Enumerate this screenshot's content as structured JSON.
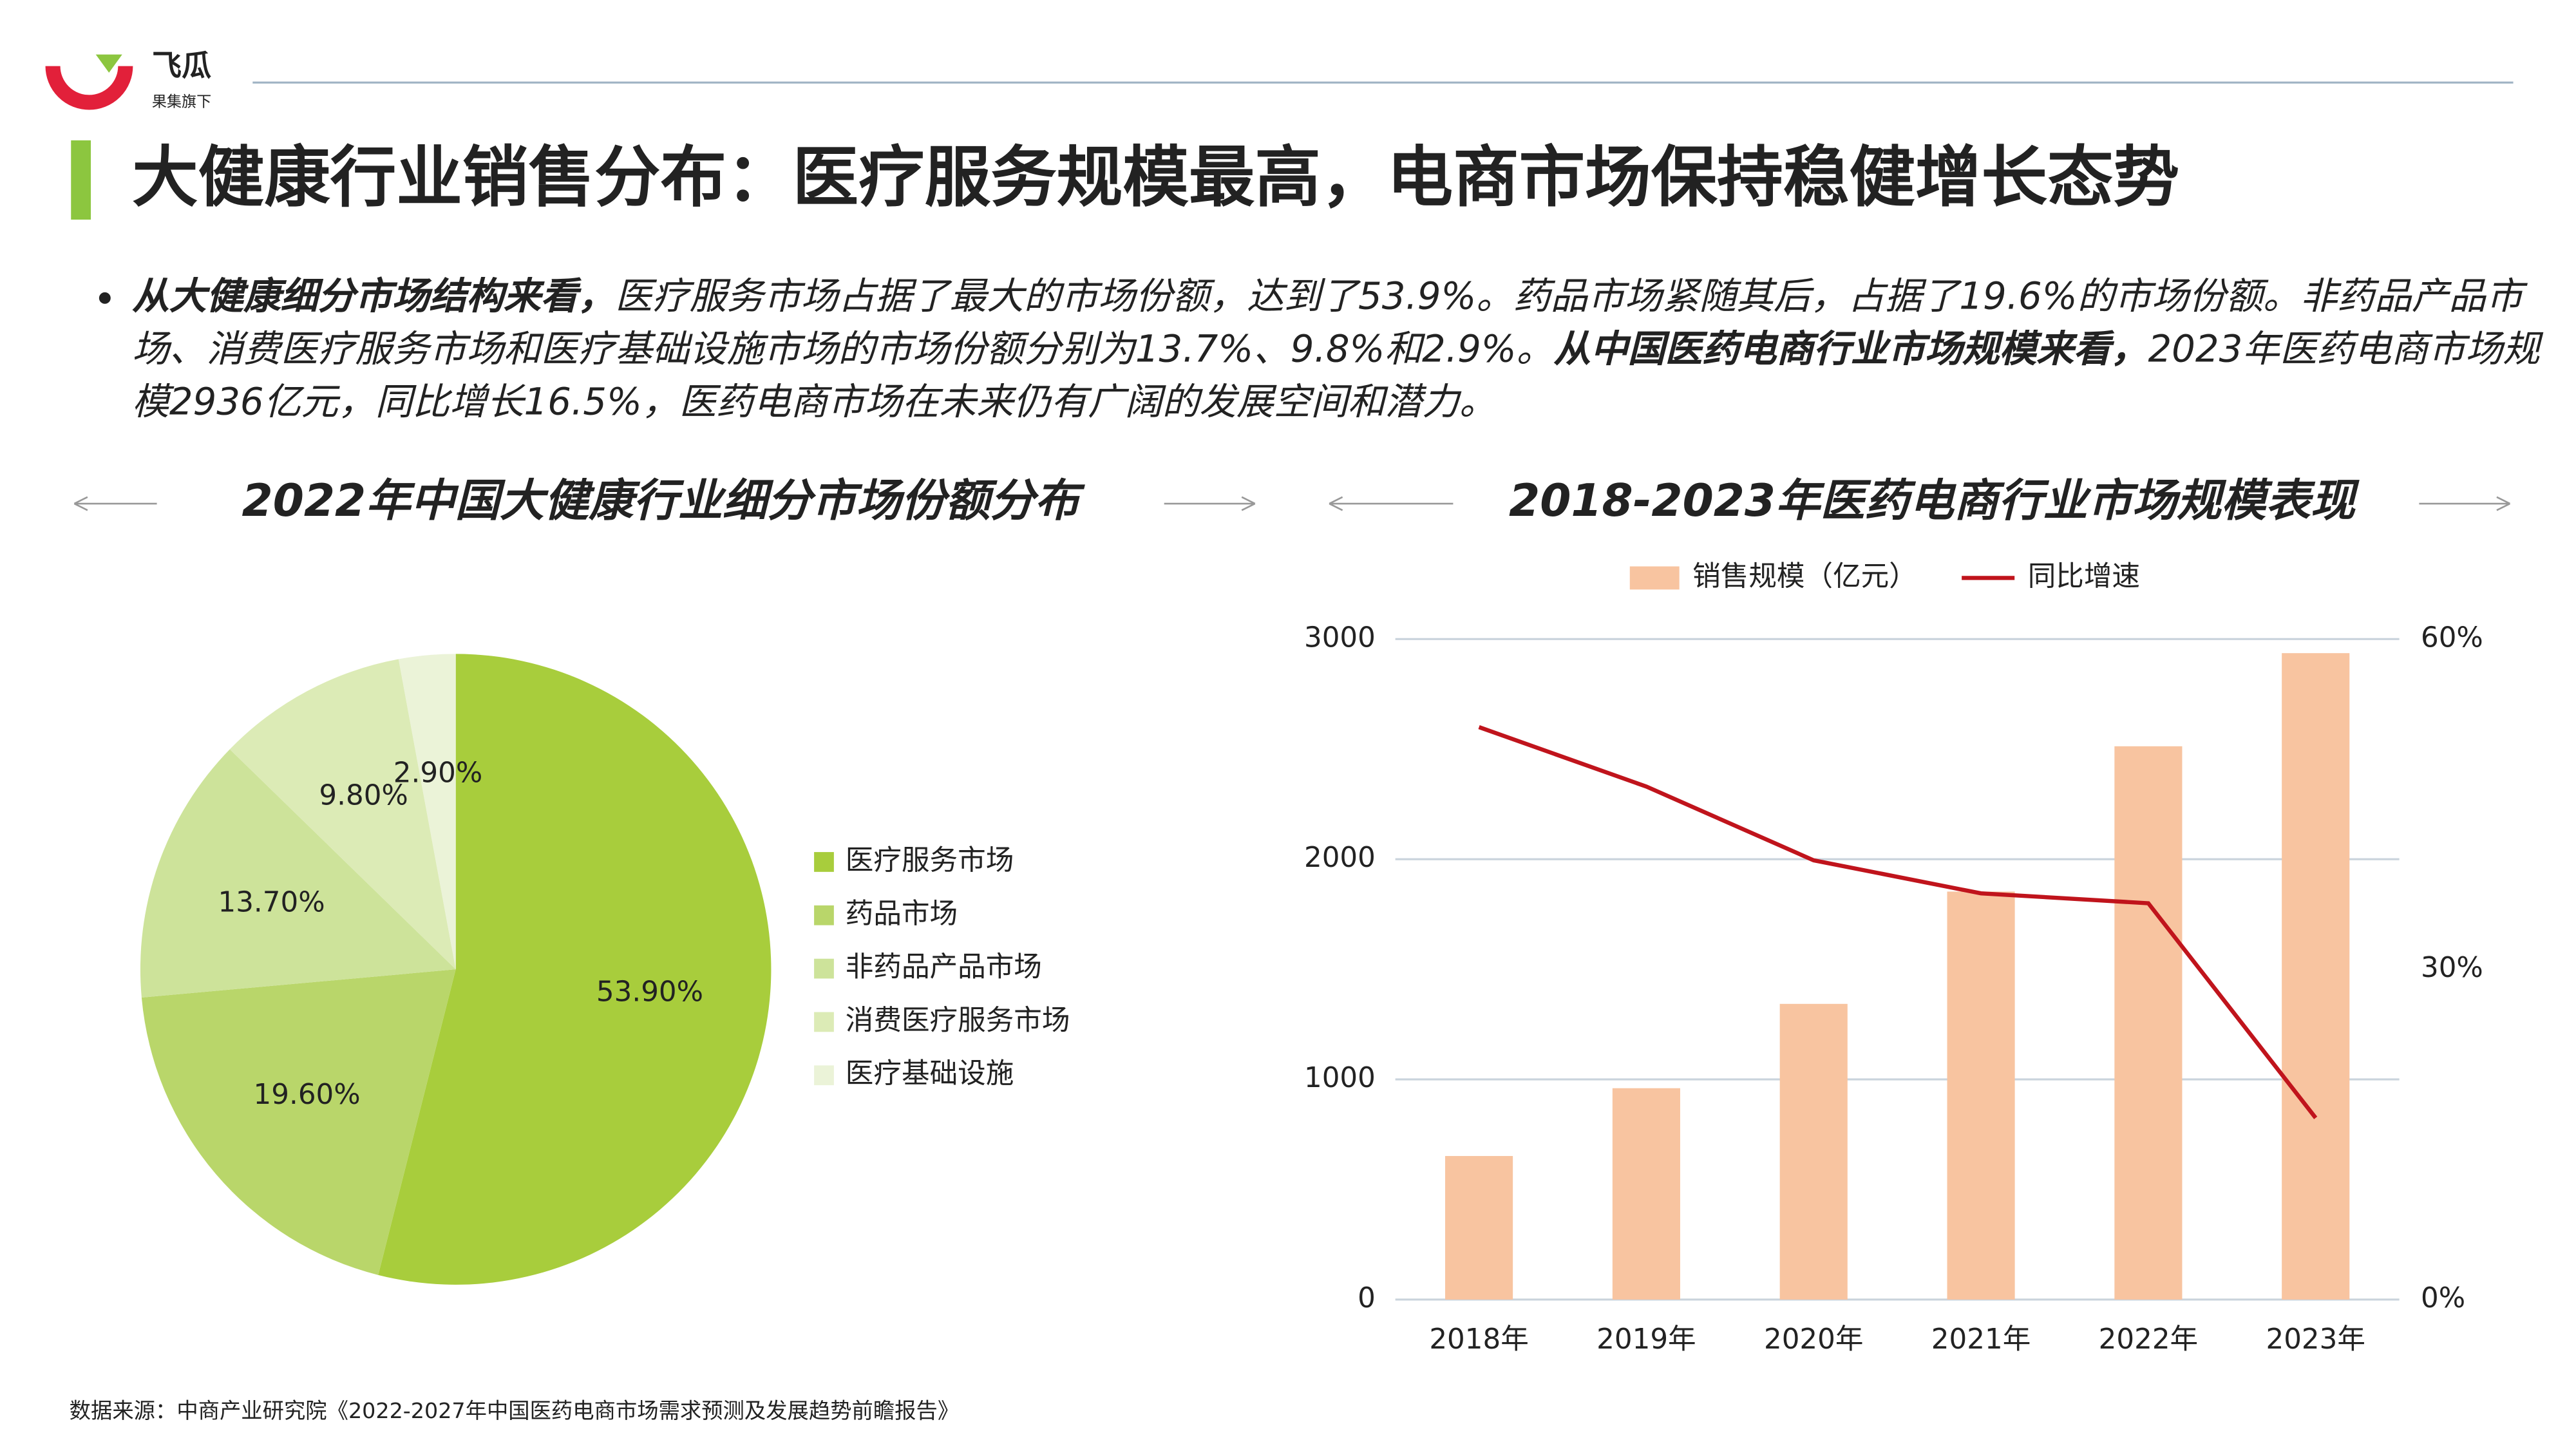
{
  "header": {
    "logo": "飞瓜",
    "logo_sub": "果集旗下",
    "title": "大健康行业销售分布：医疗服务规模最高，电商市场保持稳健增长态势"
  },
  "body": {
    "segments": [
      {
        "text": "从大健康细分市场结构来看，",
        "bold": true
      },
      {
        "text": "医疗服务市场占据了最大的市场份额，达到了53.9%。药品市场紧随其后，占据了19.6%的市场份额。非药品产品市场、消费医疗服务市场和医疗基础设施市场的市场份额分别为13.7%、9.8%和2.9%。",
        "bold": false
      },
      {
        "text": "从中国医药电商行业市场规模来看，",
        "bold": true
      },
      {
        "text": "2023年医药电商市场规模2936亿元，同比增长16.5%，医药电商市场在未来仍有广阔的发展空间和潜力。",
        "bold": false
      }
    ]
  },
  "chart_data": [
    {
      "type": "pie",
      "title": "2022年中国大健康行业细分市场份额分布",
      "categories": [
        "医疗服务市场",
        "药品市场",
        "非药品产品市场",
        "消费医疗服务市场",
        "医疗基础设施"
      ],
      "values": [
        53.9,
        19.6,
        13.7,
        9.8,
        2.9
      ],
      "value_labels": [
        "53.90%",
        "19.60%",
        "13.70%",
        "9.80%",
        "2.90%"
      ],
      "colors": [
        "#a8cd3c",
        "#b9d66a",
        "#cde39a",
        "#dcebb6",
        "#ebf3d8"
      ],
      "legend": "right"
    },
    {
      "type": "bar",
      "title": "2018-2023年医药电商行业市场规模表现",
      "categories": [
        "2018年",
        "2019年",
        "2020年",
        "2021年",
        "2022年",
        "2023年"
      ],
      "series": [
        {
          "name": "销售规模（亿元）",
          "type": "bar",
          "color": "#f8c4a0",
          "values": [
            652,
            960,
            1343,
            1853,
            2513,
            2936
          ]
        },
        {
          "name": "同比增速",
          "type": "line",
          "axis": "y2",
          "color": "#c0141c",
          "values": [
            52,
            46.6,
            39.9,
            36.9,
            36,
            16.5
          ]
        }
      ],
      "ylim": [
        0,
        3000
      ],
      "yticks": [
        0,
        1000,
        2000,
        3000
      ],
      "y2lim": [
        0,
        60
      ],
      "y2ticks": [
        {
          "value": 0,
          "label": "0%"
        },
        {
          "value": 30,
          "label": "30%"
        },
        {
          "value": 60,
          "label": "60%"
        }
      ],
      "grid": true,
      "legend": "top"
    }
  ],
  "footer": {
    "source": "数据来源：中商产业研究院《2022-2027年中国医药电商市场需求预测及发展趋势前瞻报告》"
  }
}
